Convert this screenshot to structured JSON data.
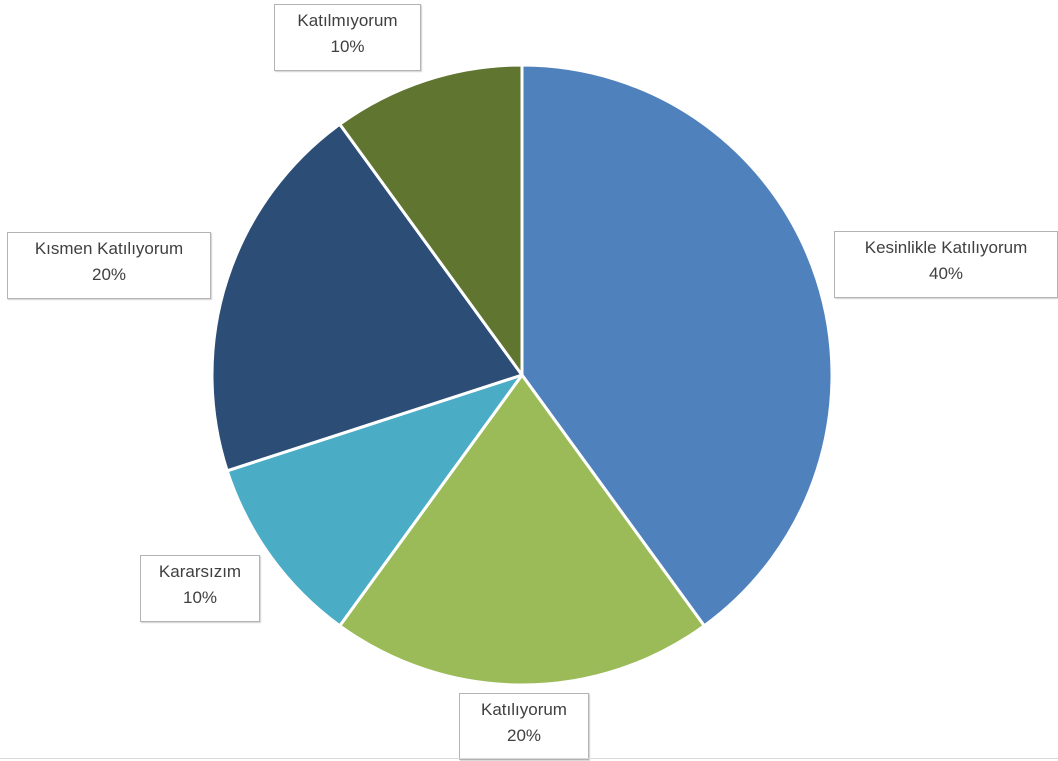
{
  "chart_data": {
    "type": "pie",
    "title": "",
    "start_angle_deg": 0,
    "direction": "clockwise",
    "slices": [
      {
        "label": "Kesinlikle Katılıyorum",
        "value": 40,
        "value_label": "40%",
        "color": "#4f81bd"
      },
      {
        "label": "Katılıyorum",
        "value": 20,
        "value_label": "20%",
        "color": "#9bbb59"
      },
      {
        "label": "Kararsızım",
        "value": 10,
        "value_label": "10%",
        "color": "#4bacc6"
      },
      {
        "label": "Kısmen Katılıyorum",
        "value": 20,
        "value_label": "20%",
        "color": "#2c4d75"
      },
      {
        "label": "Katılmıyorum",
        "value": 10,
        "value_label": "10%",
        "color": "#5f7530"
      }
    ],
    "slice_border_color": "#ffffff",
    "legend": "none",
    "data_labels": "outside-callout"
  }
}
